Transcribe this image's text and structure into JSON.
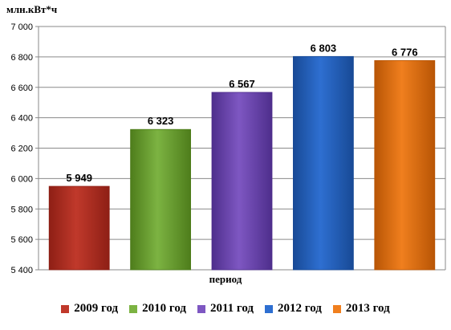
{
  "chart_data": {
    "type": "bar",
    "ylabel": "млн.кВт*ч",
    "xlabel": "период",
    "ylim": [
      5400,
      7000
    ],
    "yticks": [
      5400,
      5600,
      5800,
      6000,
      6200,
      6400,
      6600,
      6800,
      7000
    ],
    "ytick_labels": [
      "5 400",
      "5 600",
      "5 800",
      "6 000",
      "6 200",
      "6 400",
      "6 600",
      "6 800",
      "7 000"
    ],
    "grid": true,
    "legend_position": "bottom",
    "categories": [
      "2009 год",
      "2010 год",
      "2011 год",
      "2012 год",
      "2013 год"
    ],
    "values": [
      5949,
      6323,
      6567,
      6803,
      6776
    ],
    "value_labels": [
      "5 949",
      "6 323",
      "6 567",
      "6 803",
      "6 776"
    ],
    "colors": [
      "#c0392b",
      "#7cb342",
      "#7e57c2",
      "#2e6fd1",
      "#f07f1e"
    ],
    "colors_dark": [
      "#8e1f15",
      "#4e7d1b",
      "#4e2e8c",
      "#184a96",
      "#b85505"
    ]
  }
}
